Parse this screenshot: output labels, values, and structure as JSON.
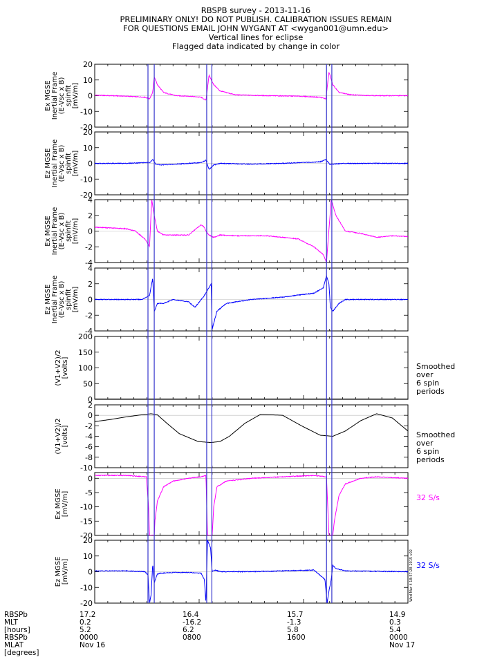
{
  "header": {
    "lines": [
      "RBSPB survey - 2013-11-16",
      "PRELIMINARY ONLY! DO NOT PUBLISH. CALIBRATION ISSUES REMAIN",
      "FOR QUESTIONS EMAIL JOHN WYGANT AT <wygan001@umn.edu>",
      "Vertical lines for eclipse",
      "Flagged data indicated by change in color"
    ]
  },
  "colors": {
    "magenta": "#ff00ff",
    "blue": "#0000ff",
    "black": "#000000",
    "eclipse": "#3333cc"
  },
  "eclipse_lines_x": [
    0.17,
    0.19,
    0.3575,
    0.374,
    0.74,
    0.757
  ],
  "chart_data": [
    {
      "type": "line",
      "id": "p1",
      "ylim": [
        -20,
        20
      ],
      "yticks": [
        -20,
        -10,
        0,
        10,
        20
      ],
      "ylabel_lines": [
        "Ex MGSE",
        "Inertial Frame",
        "(E-Vsc x B)",
        "spinfit",
        "[mV/m]"
      ],
      "color": "magenta",
      "series": [
        {
          "x": [
            0,
            0.1,
            0.16,
            0.175,
            0.185,
            0.19,
            0.2,
            0.22,
            0.26,
            0.3,
            0.34,
            0.355,
            0.365,
            0.38,
            0.4,
            0.45,
            0.55,
            0.65,
            0.72,
            0.738,
            0.748,
            0.76,
            0.78,
            0.82,
            0.9,
            1.0
          ],
          "y": [
            0.3,
            -0.3,
            -1,
            -2,
            2,
            12,
            7,
            2,
            0,
            -0.3,
            -1,
            -3,
            13,
            7,
            3,
            0.5,
            0,
            -0.3,
            -1,
            -2,
            15,
            7,
            2,
            0.5,
            0,
            0
          ]
        }
      ]
    },
    {
      "type": "line",
      "id": "p2",
      "ylim": [
        -20,
        20
      ],
      "yticks": [
        -20,
        -10,
        0,
        10,
        20
      ],
      "ylabel_lines": [
        "Ez MGSE",
        "Inertial Frame",
        "(E-Vsc x B)",
        "spinfit",
        "[mV/m]"
      ],
      "color": "blue",
      "series": [
        {
          "x": [
            0,
            0.1,
            0.16,
            0.175,
            0.185,
            0.195,
            0.21,
            0.3,
            0.34,
            0.355,
            0.365,
            0.38,
            0.4,
            0.5,
            0.6,
            0.72,
            0.738,
            0.75,
            0.77,
            0.8,
            1.0
          ],
          "y": [
            0,
            0,
            0.5,
            0.5,
            2.5,
            -0.5,
            -1,
            0,
            0.5,
            2,
            -4,
            -1,
            0,
            -0.5,
            0,
            1,
            2.5,
            -0.5,
            -0.3,
            0,
            0
          ]
        }
      ]
    },
    {
      "type": "line",
      "id": "p3",
      "ylim": [
        -4,
        4
      ],
      "yticks": [
        -4,
        -2,
        0,
        2,
        4
      ],
      "ylabel_lines": [
        "Ex MGSE",
        "Inertial Frame",
        "(E-Vsc x B)",
        "spinfit",
        "[mV/m]"
      ],
      "color": "magenta",
      "series": [
        {
          "x": [
            0,
            0.05,
            0.1,
            0.13,
            0.16,
            0.175,
            0.182,
            0.19,
            0.2,
            0.22,
            0.3,
            0.33,
            0.34,
            0.35,
            0.355,
            0.365,
            0.38,
            0.4,
            0.45,
            0.55,
            0.65,
            0.7,
            0.73,
            0.74,
            0.755,
            0.77,
            0.8,
            0.85,
            0.9,
            0.95,
            1.0
          ],
          "y": [
            0.5,
            0.4,
            0.3,
            0,
            -1,
            -2,
            4,
            2,
            0,
            -0.5,
            -0.5,
            0.5,
            0.8,
            0.5,
            0,
            -0.5,
            -0.8,
            -0.5,
            -0.6,
            -0.6,
            -1,
            -2,
            -3,
            -4,
            4,
            2,
            0,
            -0.3,
            -0.8,
            -0.6,
            -0.7
          ]
        }
      ]
    },
    {
      "type": "line",
      "id": "p4",
      "ylim": [
        -4,
        4
      ],
      "yticks": [
        -4,
        -2,
        0,
        2,
        4
      ],
      "ylabel_lines": [
        "Ez MGSE",
        "Inertial Frame",
        "(E-Vsc x B)",
        "spinfit",
        "[mV/m]"
      ],
      "color": "blue",
      "series": [
        {
          "x": [
            0,
            0.1,
            0.15,
            0.175,
            0.185,
            0.19,
            0.2,
            0.22,
            0.25,
            0.3,
            0.32,
            0.35,
            0.372,
            0.375,
            0.39,
            0.42,
            0.5,
            0.6,
            0.7,
            0.73,
            0.74,
            0.748,
            0.752,
            0.76,
            0.78,
            0.8,
            0.85,
            0.9,
            1.0
          ],
          "y": [
            0,
            0,
            0,
            0.5,
            2.7,
            -1.5,
            -0.5,
            -0.5,
            0,
            -0.3,
            -1,
            0.5,
            2,
            -3.8,
            -1.5,
            -0.5,
            0,
            0.3,
            0.8,
            1.5,
            3,
            2,
            -1,
            -1.5,
            -0.5,
            0,
            0,
            0,
            0
          ]
        }
      ]
    },
    {
      "type": "line",
      "id": "p5",
      "ylim": [
        0,
        200
      ],
      "yticks": [
        0,
        50,
        100,
        150,
        200
      ],
      "ylabel_lines": [
        "(V1+V2)/2",
        "[volts]"
      ],
      "color": "black",
      "note_lines": [
        "Smoothed",
        "over",
        "6 spin",
        "periods"
      ],
      "series": [
        {
          "x": [
            0,
            1.0
          ],
          "y": [
            1,
            1
          ]
        }
      ]
    },
    {
      "type": "line",
      "id": "p6",
      "ylim": [
        -10,
        2
      ],
      "yticks": [
        -10,
        -8,
        -6,
        -4,
        -2,
        0,
        2
      ],
      "ylabel_lines": [
        "(V1+V2)/2",
        "[volts]"
      ],
      "color": "black",
      "note_lines": [
        "Smoothed",
        "over",
        "6 spin",
        "periods"
      ],
      "series": [
        {
          "x": [
            0,
            0.05,
            0.1,
            0.15,
            0.18,
            0.2,
            0.23,
            0.27,
            0.33,
            0.37,
            0.4,
            0.43,
            0.48,
            0.53,
            0.6,
            0.66,
            0.72,
            0.76,
            0.8,
            0.85,
            0.9,
            0.95,
            1.0
          ],
          "y": [
            -1.2,
            -0.8,
            -0.3,
            0.1,
            0.3,
            0.1,
            -1.5,
            -3.5,
            -5,
            -5.2,
            -5,
            -4,
            -1.5,
            0.2,
            0,
            -2,
            -3.8,
            -4,
            -3,
            -1,
            0.3,
            -0.5,
            -3
          ]
        }
      ]
    },
    {
      "type": "line",
      "id": "p7",
      "ylim": [
        -20,
        2
      ],
      "yticks": [
        -20,
        -15,
        -10,
        -5,
        0
      ],
      "ylabel_lines": [
        "Ex MGSE",
        "[mV/m]"
      ],
      "color": "magenta",
      "note_lines": [
        "32 S/s"
      ],
      "series": [
        {
          "x": [
            0,
            0.1,
            0.165,
            0.172,
            0.175,
            0.19,
            0.192,
            0.2,
            0.22,
            0.25,
            0.3,
            0.34,
            0.355,
            0.36,
            0.365,
            0.375,
            0.38,
            0.39,
            0.42,
            0.5,
            0.6,
            0.7,
            0.74,
            0.748,
            0.76,
            0.765,
            0.78,
            0.8,
            0.85,
            0.9,
            1.0
          ],
          "y": [
            1,
            1,
            0.5,
            -10,
            -20,
            -20,
            -15,
            -8,
            -3,
            -1,
            0,
            0.5,
            1,
            -20,
            -20,
            -20,
            -10,
            -3,
            -1,
            0,
            0.5,
            1,
            0.5,
            -20,
            -20,
            -15,
            -6,
            -2,
            0,
            0.5,
            0
          ]
        }
      ]
    },
    {
      "type": "line",
      "id": "p8",
      "ylim": [
        -20,
        20
      ],
      "yticks": [
        -20,
        -10,
        0,
        10,
        20
      ],
      "ylabel_lines": [
        "Ez MGSE",
        "[mV/m]"
      ],
      "color": "blue",
      "note_lines": [
        "32 S/s"
      ],
      "side_text": "Wed Mar 4 18:57:28 2015 v02",
      "series": [
        {
          "x": [
            0,
            0.1,
            0.16,
            0.17,
            0.175,
            0.18,
            0.185,
            0.19,
            0.195,
            0.2,
            0.21,
            0.25,
            0.3,
            0.34,
            0.35,
            0.355,
            0.36,
            0.37,
            0.375,
            0.385,
            0.4,
            0.5,
            0.6,
            0.7,
            0.735,
            0.742,
            0.748,
            0.755,
            0.76,
            0.77,
            0.8,
            1.0
          ],
          "y": [
            0.5,
            0.5,
            0,
            -2,
            -20,
            -15,
            5,
            -7,
            -4,
            -1.5,
            -1,
            -0.5,
            -0.5,
            -1,
            -5,
            -20,
            20,
            15,
            0,
            1,
            0,
            0,
            0.5,
            1,
            -5,
            -20,
            -12,
            -5,
            4,
            2,
            0.5,
            0
          ]
        }
      ]
    }
  ],
  "xaxis": {
    "tick_positions": [
      0,
      0.333,
      0.667,
      1.0
    ],
    "labels_left": [
      "RBSPb",
      "MLT",
      "[hours]",
      "RBSPb",
      "MLAT",
      "[degrees]"
    ],
    "columns": [
      [
        "17.2",
        "0.2",
        "5.2",
        "0000",
        "Nov 16"
      ],
      [
        "16.4",
        "-16.2",
        "6.2",
        "0800",
        ""
      ],
      [
        "15.7",
        "-1.3",
        "5.8",
        "1600",
        ""
      ],
      [
        "14.9",
        "0.3",
        "5.4",
        "0000",
        "Nov 17"
      ]
    ]
  }
}
